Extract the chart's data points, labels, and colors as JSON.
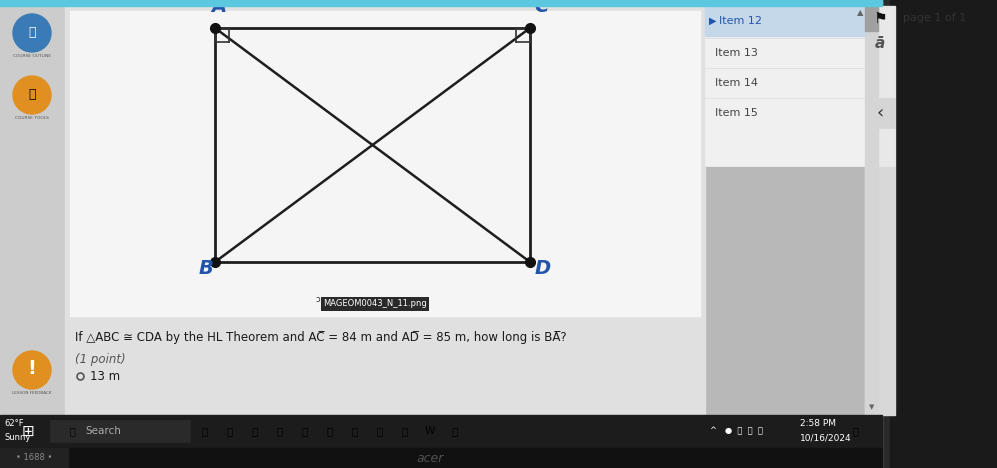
{
  "bg_color": "#b0b0b0",
  "top_bar_color": "#5bc8e0",
  "left_panel_color": "#d0d0d0",
  "content_bg": "#e8e8e8",
  "white_panel_color": "#f0f0f0",
  "sidebar_bg": "#ececec",
  "sidebar_selected_bg": "#c5d8ea",
  "sidebar_right_bg": "#e0e0e0",
  "label_color": "#2255aa",
  "point_color": "#1a1a1a",
  "line_color": "#222222",
  "sidebar_items": [
    "Item 12",
    "Item 13",
    "Item 14",
    "Item 15"
  ],
  "page_label": "page 1 of 1",
  "filename_label": "MAGEOM0043_N_11.png",
  "question_line": "If △ABC ≅ CDA by the HL Theorem and AC̅ = 84 m and AD̅ = 85 m, how long is BA̅?",
  "point_label": "(1 point)",
  "answer": "13 m",
  "time_str": "2:58 PM",
  "date_str": "10/16/2024",
  "weather_temp": "62°F",
  "weather_cond": "Sunny",
  "laptop_bezel_color": "#2a2a2a",
  "laptop_inner_color": "#1a1a1a",
  "scrollbar_color": "#c0c0c0",
  "scrollbar_thumb_color": "#909090",
  "taskbar_color": "#1c1c1c",
  "counter_text": "•1688•",
  "acer_color": "#505050"
}
